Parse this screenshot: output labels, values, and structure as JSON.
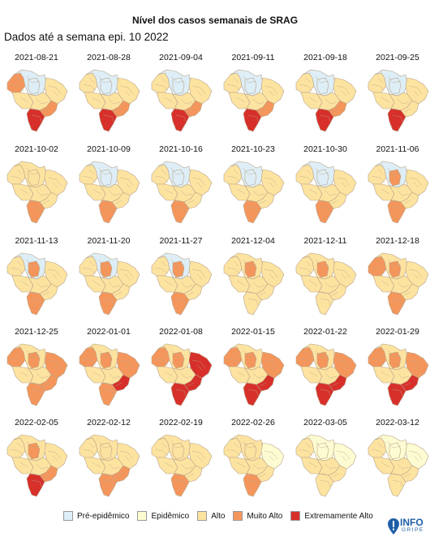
{
  "title": "Nível dos casos semanais de SRAG",
  "subtitle": "Dados até a semana epi. 10 2022",
  "colors": {
    "pre_epidemico": "#deeef7",
    "epidemico": "#fdfbd2",
    "alto": "#fde3a0",
    "muito_alto": "#f4965c",
    "extremamente_alto": "#d7302a",
    "border": "#b7a48a"
  },
  "legend": [
    {
      "label": "Pré-epidêmico",
      "key": "pre_epidemico"
    },
    {
      "label": "Epidêmico",
      "key": "epidemico"
    },
    {
      "label": "Alto",
      "key": "alto"
    },
    {
      "label": "Muito Alto",
      "key": "muito_alto"
    },
    {
      "label": "Extremamente Alto",
      "key": "extremamente_alto"
    }
  ],
  "maps": [
    {
      "date": "2021-08-21",
      "north": "mixed_blue",
      "nbw": "muito_alto",
      "south": "extremamente_alto",
      "sp": "muito_alto"
    },
    {
      "date": "2021-08-28",
      "north": "mixed_blue",
      "nbw": "alto",
      "south": "extremamente_alto",
      "sp": "muito_alto"
    },
    {
      "date": "2021-09-04",
      "north": "mixed_blue",
      "nbw": "alto",
      "south": "extremamente_alto",
      "sp": "muito_alto"
    },
    {
      "date": "2021-09-11",
      "north": "mixed_blue",
      "nbw": "alto",
      "south": "extremamente_alto",
      "sp": "muito_alto"
    },
    {
      "date": "2021-09-18",
      "north": "mixed_blue",
      "nbw": "alto",
      "south": "extremamente_alto",
      "sp": "muito_alto"
    },
    {
      "date": "2021-09-25",
      "north": "mixed_blue",
      "nbw": "alto",
      "south": "extremamente_alto",
      "sp": "alto"
    },
    {
      "date": "2021-10-02",
      "north": "alto",
      "nbw": "alto",
      "south": "muito_alto",
      "sp": "alto"
    },
    {
      "date": "2021-10-09",
      "north": "mixed_blue",
      "nbw": "alto",
      "south": "muito_alto",
      "sp": "alto"
    },
    {
      "date": "2021-10-16",
      "north": "mixed_blue",
      "nbw": "alto",
      "south": "muito_alto",
      "sp": "alto"
    },
    {
      "date": "2021-10-23",
      "north": "mixed_blue",
      "nbw": "alto",
      "south": "muito_alto",
      "sp": "alto"
    },
    {
      "date": "2021-10-30",
      "north": "mixed_blue",
      "nbw": "alto",
      "south": "muito_alto",
      "sp": "alto"
    },
    {
      "date": "2021-11-06",
      "north": "mixed_blue",
      "nbw": "alto",
      "south": "muito_alto",
      "sp": "alto",
      "para": "muito_alto"
    },
    {
      "date": "2021-11-13",
      "north": "mixed_blue",
      "nbw": "alto",
      "south": "muito_alto",
      "sp": "alto",
      "para": "muito_alto"
    },
    {
      "date": "2021-11-20",
      "north": "mixed_blue",
      "nbw": "alto",
      "south": "muito_alto",
      "sp": "alto",
      "para": "muito_alto"
    },
    {
      "date": "2021-11-27",
      "north": "mixed_blue",
      "nbw": "alto",
      "south": "muito_alto",
      "sp": "alto",
      "para": "muito_alto"
    },
    {
      "date": "2021-12-04",
      "north": "alto",
      "nbw": "alto",
      "south": "alto",
      "sp": "alto",
      "para": "muito_alto"
    },
    {
      "date": "2021-12-11",
      "north": "alto",
      "nbw": "alto",
      "south": "alto",
      "sp": "alto",
      "para": "muito_alto"
    },
    {
      "date": "2021-12-18",
      "north": "alto",
      "nbw": "muito_alto",
      "south": "muito_alto",
      "sp": "alto",
      "para": "muito_alto"
    },
    {
      "date": "2021-12-25",
      "north": "alto",
      "nbw": "muito_alto",
      "south": "muito_alto",
      "sp": "muito_alto",
      "para": "muito_alto",
      "ne": "muito_alto"
    },
    {
      "date": "2022-01-01",
      "north": "alto",
      "nbw": "muito_alto",
      "south": "muito_alto",
      "sp": "extremamente_alto",
      "para": "muito_alto",
      "ne": "muito_alto"
    },
    {
      "date": "2022-01-08",
      "north": "alto",
      "nbw": "muito_alto",
      "south": "extremamente_alto",
      "sp": "extremamente_alto",
      "para": "muito_alto",
      "ne": "extremamente_alto"
    },
    {
      "date": "2022-01-15",
      "north": "alto",
      "nbw": "muito_alto",
      "south": "extremamente_alto",
      "sp": "extremamente_alto",
      "para": "muito_alto",
      "ne": "muito_alto"
    },
    {
      "date": "2022-01-22",
      "north": "alto",
      "nbw": "muito_alto",
      "south": "extremamente_alto",
      "sp": "extremamente_alto",
      "para": "muito_alto",
      "ne": "muito_alto"
    },
    {
      "date": "2022-01-29",
      "north": "alto",
      "nbw": "muito_alto",
      "south": "extremamente_alto",
      "sp": "extremamente_alto",
      "para": "muito_alto",
      "ne": "muito_alto"
    },
    {
      "date": "2022-02-05",
      "north": "alto",
      "nbw": "alto",
      "south": "extremamente_alto",
      "sp": "muito_alto",
      "para": "muito_alto",
      "ne": "alto"
    },
    {
      "date": "2022-02-12",
      "north": "alto",
      "nbw": "alto",
      "south": "muito_alto",
      "sp": "muito_alto",
      "para": "alto",
      "ne": "alto"
    },
    {
      "date": "2022-02-19",
      "north": "alto",
      "nbw": "alto",
      "south": "muito_alto",
      "sp": "alto",
      "para": "alto",
      "ne": "alto"
    },
    {
      "date": "2022-02-26",
      "north": "alto",
      "nbw": "alto",
      "south": "muito_alto",
      "sp": "alto",
      "para": "alto",
      "ne": "epidemico"
    },
    {
      "date": "2022-03-05",
      "north": "epidemico",
      "nbw": "alto",
      "south": "alto",
      "sp": "alto",
      "para": "epidemico",
      "ne": "epidemico"
    },
    {
      "date": "2022-03-12",
      "north": "epidemico",
      "nbw": "alto",
      "south": "alto",
      "sp": "alto",
      "para": "epidemico",
      "ne": "epidemico"
    }
  ],
  "logo": {
    "line1": "INFO",
    "line2": "GRIPE"
  }
}
